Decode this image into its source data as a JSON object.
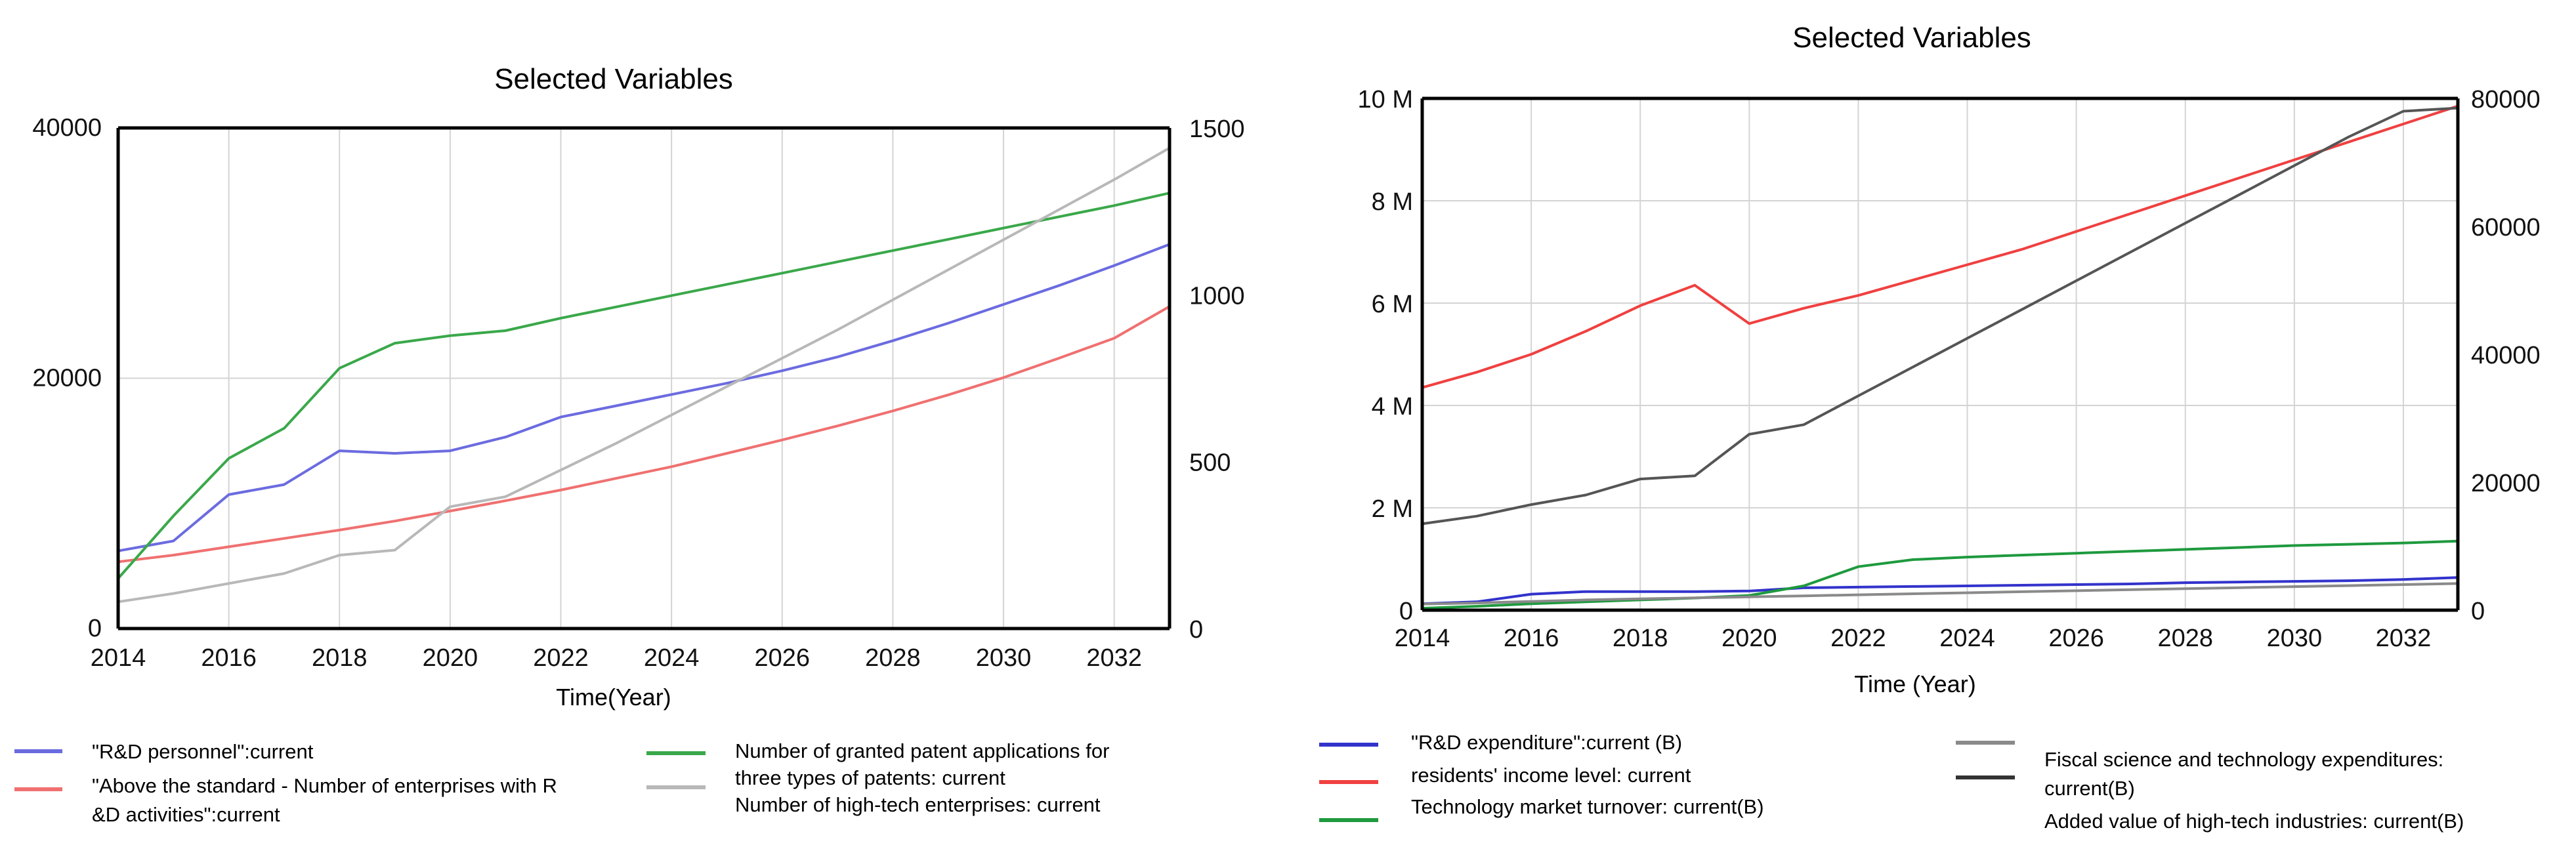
{
  "chart_data": [
    {
      "type": "line",
      "title": "Selected Variables",
      "xlabel": "Time(Year)",
      "x_ticks": [
        "2014",
        "2016",
        "2018",
        "2020",
        "2022",
        "2024",
        "2026",
        "2028",
        "2030",
        "2032"
      ],
      "xlim": [
        2014,
        2033
      ],
      "y_left": {
        "ylim": [
          0,
          40000
        ],
        "ticks": [
          "0",
          "20000",
          "40000"
        ]
      },
      "y_right": {
        "ylim": [
          0,
          1500
        ],
        "ticks": [
          "0",
          "500",
          "1000",
          "1500"
        ]
      },
      "grid": true,
      "x": [
        2014,
        2015,
        2016,
        2017,
        2018,
        2019,
        2020,
        2021,
        2022,
        2023,
        2024,
        2025,
        2026,
        2027,
        2028,
        2029,
        2030,
        2031,
        2032,
        2033
      ],
      "series": [
        {
          "name": "\"R&D personnel\":current",
          "color": "#6b6be0",
          "axis": "left",
          "values": [
            6200,
            7000,
            10700,
            11500,
            14200,
            14000,
            14200,
            15300,
            16900,
            17800,
            18700,
            19600,
            20600,
            21700,
            23000,
            24400,
            25900,
            27400,
            29000,
            30700
          ]
        },
        {
          "name": "\"Above the standard - Number of enterprises with R &D activities\":current",
          "color": "#f07070",
          "axis": "right",
          "values": [
            200,
            220,
            245,
            270,
            295,
            322,
            352,
            383,
            415,
            450,
            485,
            525,
            565,
            607,
            652,
            700,
            752,
            810,
            870,
            965
          ]
        },
        {
          "name": "Number of granted patent applications for three types of patents: current",
          "color": "#3aa84a",
          "axis": "left",
          "values": [
            4000,
            9000,
            13600,
            16000,
            20800,
            22800,
            23400,
            23800,
            24800,
            25700,
            26600,
            27500,
            28400,
            29300,
            30200,
            31100,
            32000,
            32900,
            33800,
            34800
          ]
        },
        {
          "name": "Number of high-tech enterprises: current",
          "color": "#b8b8b8",
          "axis": "right",
          "values": [
            80,
            105,
            135,
            165,
            220,
            235,
            365,
            395,
            475,
            555,
            640,
            725,
            810,
            895,
            985,
            1075,
            1165,
            1255,
            1345,
            1440
          ]
        }
      ]
    },
    {
      "type": "line",
      "title": "Selected Variables",
      "xlabel": "Time (Year)",
      "x_ticks": [
        "2014",
        "2016",
        "2018",
        "2020",
        "2022",
        "2024",
        "2026",
        "2028",
        "2030",
        "2032"
      ],
      "xlim": [
        2014,
        2033
      ],
      "y_left": {
        "ylim": [
          0,
          10000000
        ],
        "ticks": [
          "0",
          "2 M",
          "4 M",
          "6 M",
          "8 M",
          "10 M"
        ]
      },
      "y_right": {
        "ylim": [
          0,
          80000
        ],
        "ticks": [
          "0",
          "20000",
          "40000",
          "60000",
          "80000"
        ]
      },
      "grid": true,
      "x": [
        2014,
        2015,
        2016,
        2017,
        2018,
        2019,
        2020,
        2021,
        2022,
        2023,
        2024,
        2025,
        2026,
        2027,
        2028,
        2029,
        2030,
        2031,
        2032,
        2033
      ],
      "series": [
        {
          "name": "\"R&D expenditure\":current (B)",
          "color": "#3333cc",
          "axis": "right",
          "values": [
            1000,
            1300,
            2500,
            2900,
            2900,
            2900,
            3000,
            3500,
            3600,
            3700,
            3800,
            3900,
            4000,
            4100,
            4300,
            4400,
            4500,
            4600,
            4800,
            5100
          ]
        },
        {
          "name": "residents' income level: current",
          "color": "#f04040",
          "axis": "left",
          "values": [
            4350000,
            4650000,
            5000000,
            5450000,
            5950000,
            6350000,
            5600000,
            5900000,
            6150000,
            6450000,
            6750000,
            7050000,
            7400000,
            7750000,
            8100000,
            8450000,
            8800000,
            9150000,
            9500000,
            9850000
          ]
        },
        {
          "name": "Technology market turnover: current(B)",
          "color": "#1e9a3e",
          "axis": "right",
          "values": [
            300,
            600,
            1000,
            1300,
            1600,
            1900,
            2300,
            3800,
            6800,
            7900,
            8300,
            8600,
            8900,
            9200,
            9500,
            9800,
            10100,
            10300,
            10500,
            10800
          ]
        },
        {
          "name": "Fiscal science and technology expenditures: current(B)",
          "color": "#8a8a8a",
          "axis": "left",
          "values": [
            120000,
            140000,
            170000,
            200000,
            220000,
            240000,
            260000,
            280000,
            300000,
            320000,
            340000,
            360000,
            380000,
            400000,
            420000,
            440000,
            460000,
            480000,
            500000,
            520000
          ]
        },
        {
          "name": "Added value of high-tech industries: current(B)",
          "color": "#555555",
          "axis": "right",
          "values": [
            13500,
            14700,
            16500,
            18000,
            20500,
            21000,
            27500,
            29000,
            33500,
            38000,
            42500,
            47000,
            51500,
            56000,
            60500,
            65000,
            69500,
            74000,
            78000,
            78500
          ]
        }
      ]
    }
  ],
  "legends": {
    "left": [
      "\"R&D personnel\":current",
      "\"Above the standard - Number of enterprises with R",
      "&D activities\":current",
      "Number of granted patent applications for",
      "three types of patents:  current",
      "Number of high-tech enterprises:  current"
    ],
    "right": [
      "\"R&D expenditure\":current (B)",
      "residents' income level:  current",
      "Technology market turnover:  current(B)",
      "Fiscal science and technology expenditures:",
      "current(B)",
      "Added value of high-tech industries:  current(B)"
    ]
  }
}
